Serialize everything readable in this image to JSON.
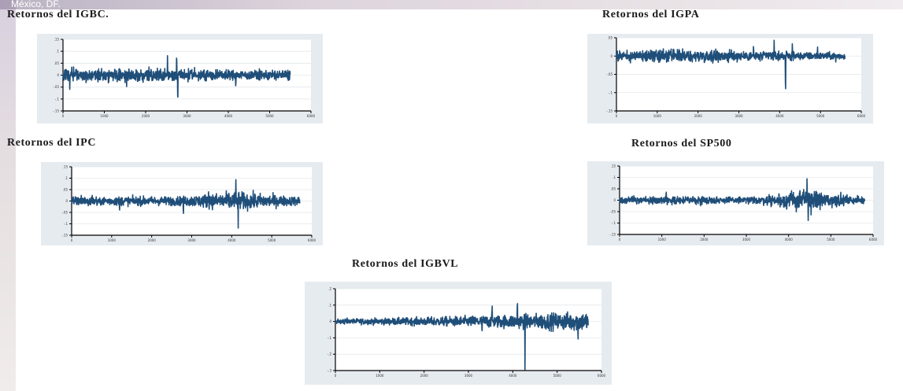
{
  "slide": {
    "header_text": "México, DF."
  },
  "chart_data": [
    {
      "type": "line",
      "title": "Retornos del IGBC.",
      "color": "#1f4e79",
      "x_ticks": [
        "0",
        "1000",
        "2000",
        "3000",
        "4000",
        "5000",
        "6000"
      ],
      "y_ticks": [
        "-.15",
        "-.1",
        "-.05",
        "0",
        ".05",
        ".1",
        ".15"
      ],
      "ylim": [
        -0.15,
        0.15
      ],
      "xlim": [
        0,
        6000
      ],
      "n_points": 5500,
      "xlabel": "",
      "ylabel": ""
    },
    {
      "type": "line",
      "title": "Retornos del IGPA",
      "color": "#1f4e79",
      "x_ticks": [
        "0",
        "1000",
        "2000",
        "3000",
        "4000",
        "5000",
        "6000"
      ],
      "y_ticks": [
        "-.15",
        "-.1",
        "-.05",
        "0",
        ".05"
      ],
      "ylim": [
        -0.15,
        0.05
      ],
      "xlim": [
        0,
        6000
      ],
      "n_points": 5600,
      "xlabel": "",
      "ylabel": ""
    },
    {
      "type": "line",
      "title": "Retornos del IPC",
      "color": "#1f4e79",
      "x_ticks": [
        "0",
        "1000",
        "2000",
        "3000",
        "4000",
        "5000",
        "6000"
      ],
      "y_ticks": [
        "-.15",
        "-.1",
        "-.05",
        "0",
        ".05",
        ".1",
        ".15"
      ],
      "ylim": [
        -0.15,
        0.15
      ],
      "xlim": [
        0,
        6000
      ],
      "n_points": 5700,
      "xlabel": "",
      "ylabel": ""
    },
    {
      "type": "line",
      "title": "Retornos del SP500",
      "color": "#1f4e79",
      "x_ticks": [
        "0",
        "1000",
        "2000",
        "3000",
        "4000",
        "5000",
        "6000"
      ],
      "y_ticks": [
        "-.15",
        "-.1",
        "-.05",
        "0",
        ".05",
        ".1",
        ".15"
      ],
      "ylim": [
        -0.15,
        0.15
      ],
      "xlim": [
        0,
        6000
      ],
      "n_points": 5800,
      "xlabel": "",
      "ylabel": ""
    },
    {
      "type": "line",
      "title": "Retornos del IGBVL",
      "color": "#1f4e79",
      "x_ticks": [
        "0",
        "1000",
        "2000",
        "3000",
        "4000",
        "5000",
        "6000"
      ],
      "y_ticks": [
        "-.3",
        "-.2",
        "-.1",
        "0",
        ".1",
        ".2"
      ],
      "ylim": [
        -0.3,
        0.2
      ],
      "xlim": [
        0,
        6000
      ],
      "n_points": 5700,
      "xlabel": "",
      "ylabel": ""
    }
  ]
}
